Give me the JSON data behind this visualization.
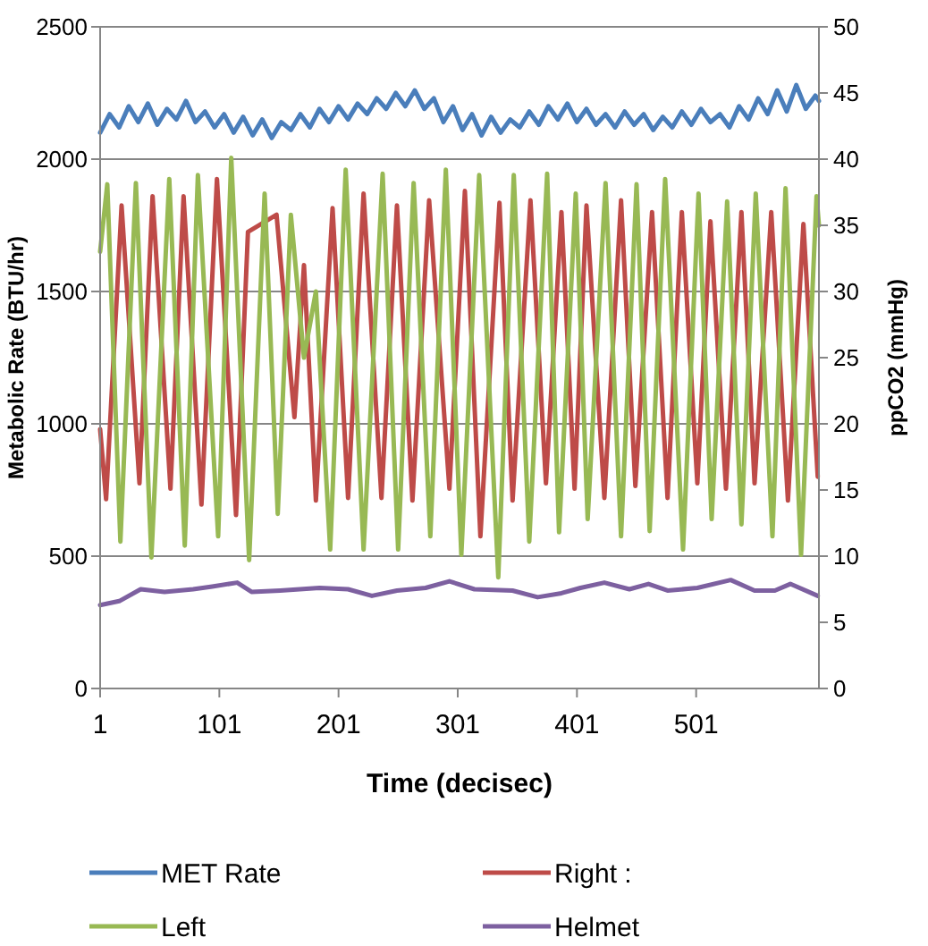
{
  "chart_data": {
    "type": "line",
    "xlabel": "Time (decisec)",
    "ylabel": "Metabolic Rate (BTU/hr)",
    "y2label": "ppCO2 (mmHg)",
    "xlim": [
      1,
      604
    ],
    "xticks": [
      1,
      101,
      201,
      301,
      401,
      501
    ],
    "ylim": [
      0,
      2500
    ],
    "yticks": [
      0,
      500,
      1000,
      1500,
      2000,
      2500
    ],
    "y2lim": [
      0,
      50
    ],
    "y2ticks": [
      0,
      5,
      10,
      15,
      20,
      25,
      30,
      35,
      40,
      45,
      50
    ],
    "grid": "y",
    "legend": "bottom",
    "marker": "none",
    "line_style": "solid",
    "series": [
      {
        "name": "MET Rate",
        "color": "#4a7ebb",
        "x": [
          1,
          9,
          17,
          25,
          33,
          41,
          49,
          57,
          65,
          73,
          81,
          89,
          97,
          105,
          113,
          121,
          129,
          137,
          145,
          153,
          161,
          169,
          177,
          185,
          193,
          201,
          209,
          217,
          225,
          233,
          241,
          249,
          257,
          265,
          273,
          281,
          289,
          297,
          305,
          313,
          321,
          329,
          337,
          345,
          353,
          361,
          369,
          377,
          385,
          393,
          401,
          409,
          417,
          425,
          433,
          441,
          449,
          457,
          465,
          473,
          481,
          489,
          497,
          505,
          513,
          521,
          529,
          537,
          545,
          553,
          561,
          569,
          577,
          585,
          593,
          601,
          604
        ],
        "values": [
          2100,
          2170,
          2120,
          2200,
          2140,
          2210,
          2130,
          2190,
          2150,
          2220,
          2140,
          2180,
          2120,
          2170,
          2100,
          2160,
          2090,
          2150,
          2080,
          2140,
          2110,
          2170,
          2120,
          2190,
          2140,
          2200,
          2150,
          2210,
          2170,
          2230,
          2190,
          2250,
          2200,
          2260,
          2190,
          2230,
          2140,
          2200,
          2110,
          2170,
          2090,
          2160,
          2100,
          2150,
          2120,
          2180,
          2130,
          2200,
          2150,
          2210,
          2140,
          2190,
          2130,
          2170,
          2120,
          2180,
          2130,
          2170,
          2110,
          2160,
          2120,
          2180,
          2130,
          2190,
          2140,
          2170,
          2120,
          2200,
          2150,
          2230,
          2170,
          2260,
          2180,
          2280,
          2190,
          2240,
          2220
        ]
      },
      {
        "name": "Right :",
        "color": "#be4b48",
        "axis": "y2",
        "x": [
          1,
          6,
          19,
          34,
          45,
          60,
          71,
          86,
          99,
          115,
          125,
          149,
          164,
          172,
          182,
          196,
          209,
          222,
          237,
          250,
          263,
          277,
          294,
          307,
          320,
          336,
          347,
          362,
          375,
          388,
          399,
          409,
          424,
          438,
          450,
          464,
          477,
          489,
          502,
          513,
          526,
          539,
          550,
          564,
          578,
          591,
          603
        ],
        "values": [
          19.6,
          14.3,
          36.5,
          15.5,
          37.2,
          15.1,
          37.2,
          13.9,
          38.5,
          13.1,
          34.5,
          35.8,
          20.5,
          32,
          14.2,
          36.3,
          14.4,
          37.4,
          14.4,
          36.5,
          14.2,
          36.9,
          15.1,
          37.6,
          11.5,
          36.7,
          14.2,
          36.9,
          15.5,
          36,
          15.1,
          36.5,
          14.4,
          36.9,
          15.3,
          36,
          14.4,
          36,
          15.5,
          35.3,
          15.1,
          36,
          15.5,
          36,
          14.2,
          35.1,
          16
        ]
      },
      {
        "name": "Left",
        "color": "#98b954",
        "axis": "y2",
        "x": [
          1,
          7,
          18,
          31,
          44,
          59,
          72,
          83,
          100,
          111,
          126,
          139,
          150,
          161,
          172,
          182,
          194,
          207,
          222,
          238,
          251,
          264,
          278,
          291,
          304,
          319,
          335,
          348,
          361,
          376,
          386,
          400,
          410,
          425,
          438,
          451,
          462,
          475,
          490,
          503,
          514,
          527,
          539,
          551,
          565,
          576,
          589,
          602,
          604
        ],
        "values": [
          33,
          38.1,
          11.1,
          38.2,
          9.9,
          38.5,
          10.8,
          38.8,
          11.5,
          40.1,
          9.7,
          37.4,
          13.2,
          35.8,
          25,
          30,
          10.5,
          39.2,
          10.5,
          38.9,
          10.5,
          38.2,
          11.5,
          39.2,
          10.1,
          38.8,
          8.4,
          38.8,
          11.1,
          38.9,
          11.8,
          37.4,
          12.8,
          38.2,
          11.5,
          38.1,
          11.9,
          38.5,
          10.5,
          37.4,
          12.8,
          36.8,
          12.4,
          37.4,
          11.5,
          37.8,
          10.1,
          37.2,
          35
        ]
      },
      {
        "name": "Helmet",
        "color": "#7d60a0",
        "axis": "y2",
        "x": [
          1,
          17,
          35,
          55,
          79,
          95,
          116,
          128,
          152,
          185,
          209,
          229,
          250,
          274,
          294,
          315,
          347,
          368,
          388,
          404,
          424,
          445,
          461,
          477,
          502,
          530,
          550,
          567,
          580,
          603
        ],
        "values": [
          6.3,
          6.6,
          7.5,
          7.3,
          7.5,
          7.7,
          8,
          7.3,
          7.4,
          7.6,
          7.5,
          7,
          7.4,
          7.6,
          8.1,
          7.5,
          7.4,
          6.9,
          7.2,
          7.6,
          8,
          7.5,
          7.9,
          7.4,
          7.6,
          8.2,
          7.4,
          7.4,
          7.9,
          7
        ]
      }
    ]
  }
}
